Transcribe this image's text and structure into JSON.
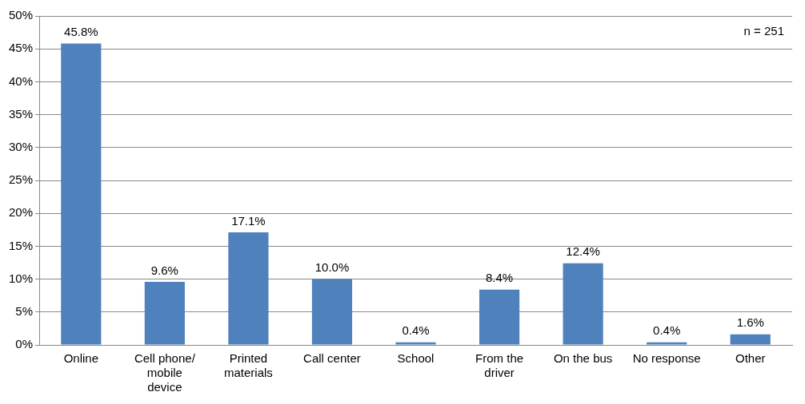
{
  "chart_data": {
    "type": "bar",
    "categories": [
      "Online",
      "Cell phone/ mobile device",
      "Printed materials",
      "Call center",
      "School",
      "From the driver",
      "On the bus",
      "No response",
      "Other"
    ],
    "values": [
      45.8,
      9.6,
      17.1,
      10.0,
      0.4,
      8.4,
      12.4,
      0.4,
      1.6
    ],
    "value_labels": [
      "45.8%",
      "9.6%",
      "17.1%",
      "10.0%",
      "0.4%",
      "8.4%",
      "12.4%",
      "0.4%",
      "1.6%"
    ],
    "color": "#4f81bd",
    "ylim": [
      0,
      50
    ],
    "yticks": [
      {
        "value": 0,
        "label": "0%"
      },
      {
        "value": 5,
        "label": "5%"
      },
      {
        "value": 10,
        "label": "10%"
      },
      {
        "value": 15,
        "label": "15%"
      },
      {
        "value": 20,
        "label": "20%"
      },
      {
        "value": 25,
        "label": "25%"
      },
      {
        "value": 30,
        "label": "30%"
      },
      {
        "value": 35,
        "label": "35%"
      },
      {
        "value": 40,
        "label": "40%"
      },
      {
        "value": 45,
        "label": "45%"
      },
      {
        "value": 50,
        "label": "50%"
      }
    ],
    "grid": "y",
    "annotations": [
      "n = 251"
    ]
  }
}
